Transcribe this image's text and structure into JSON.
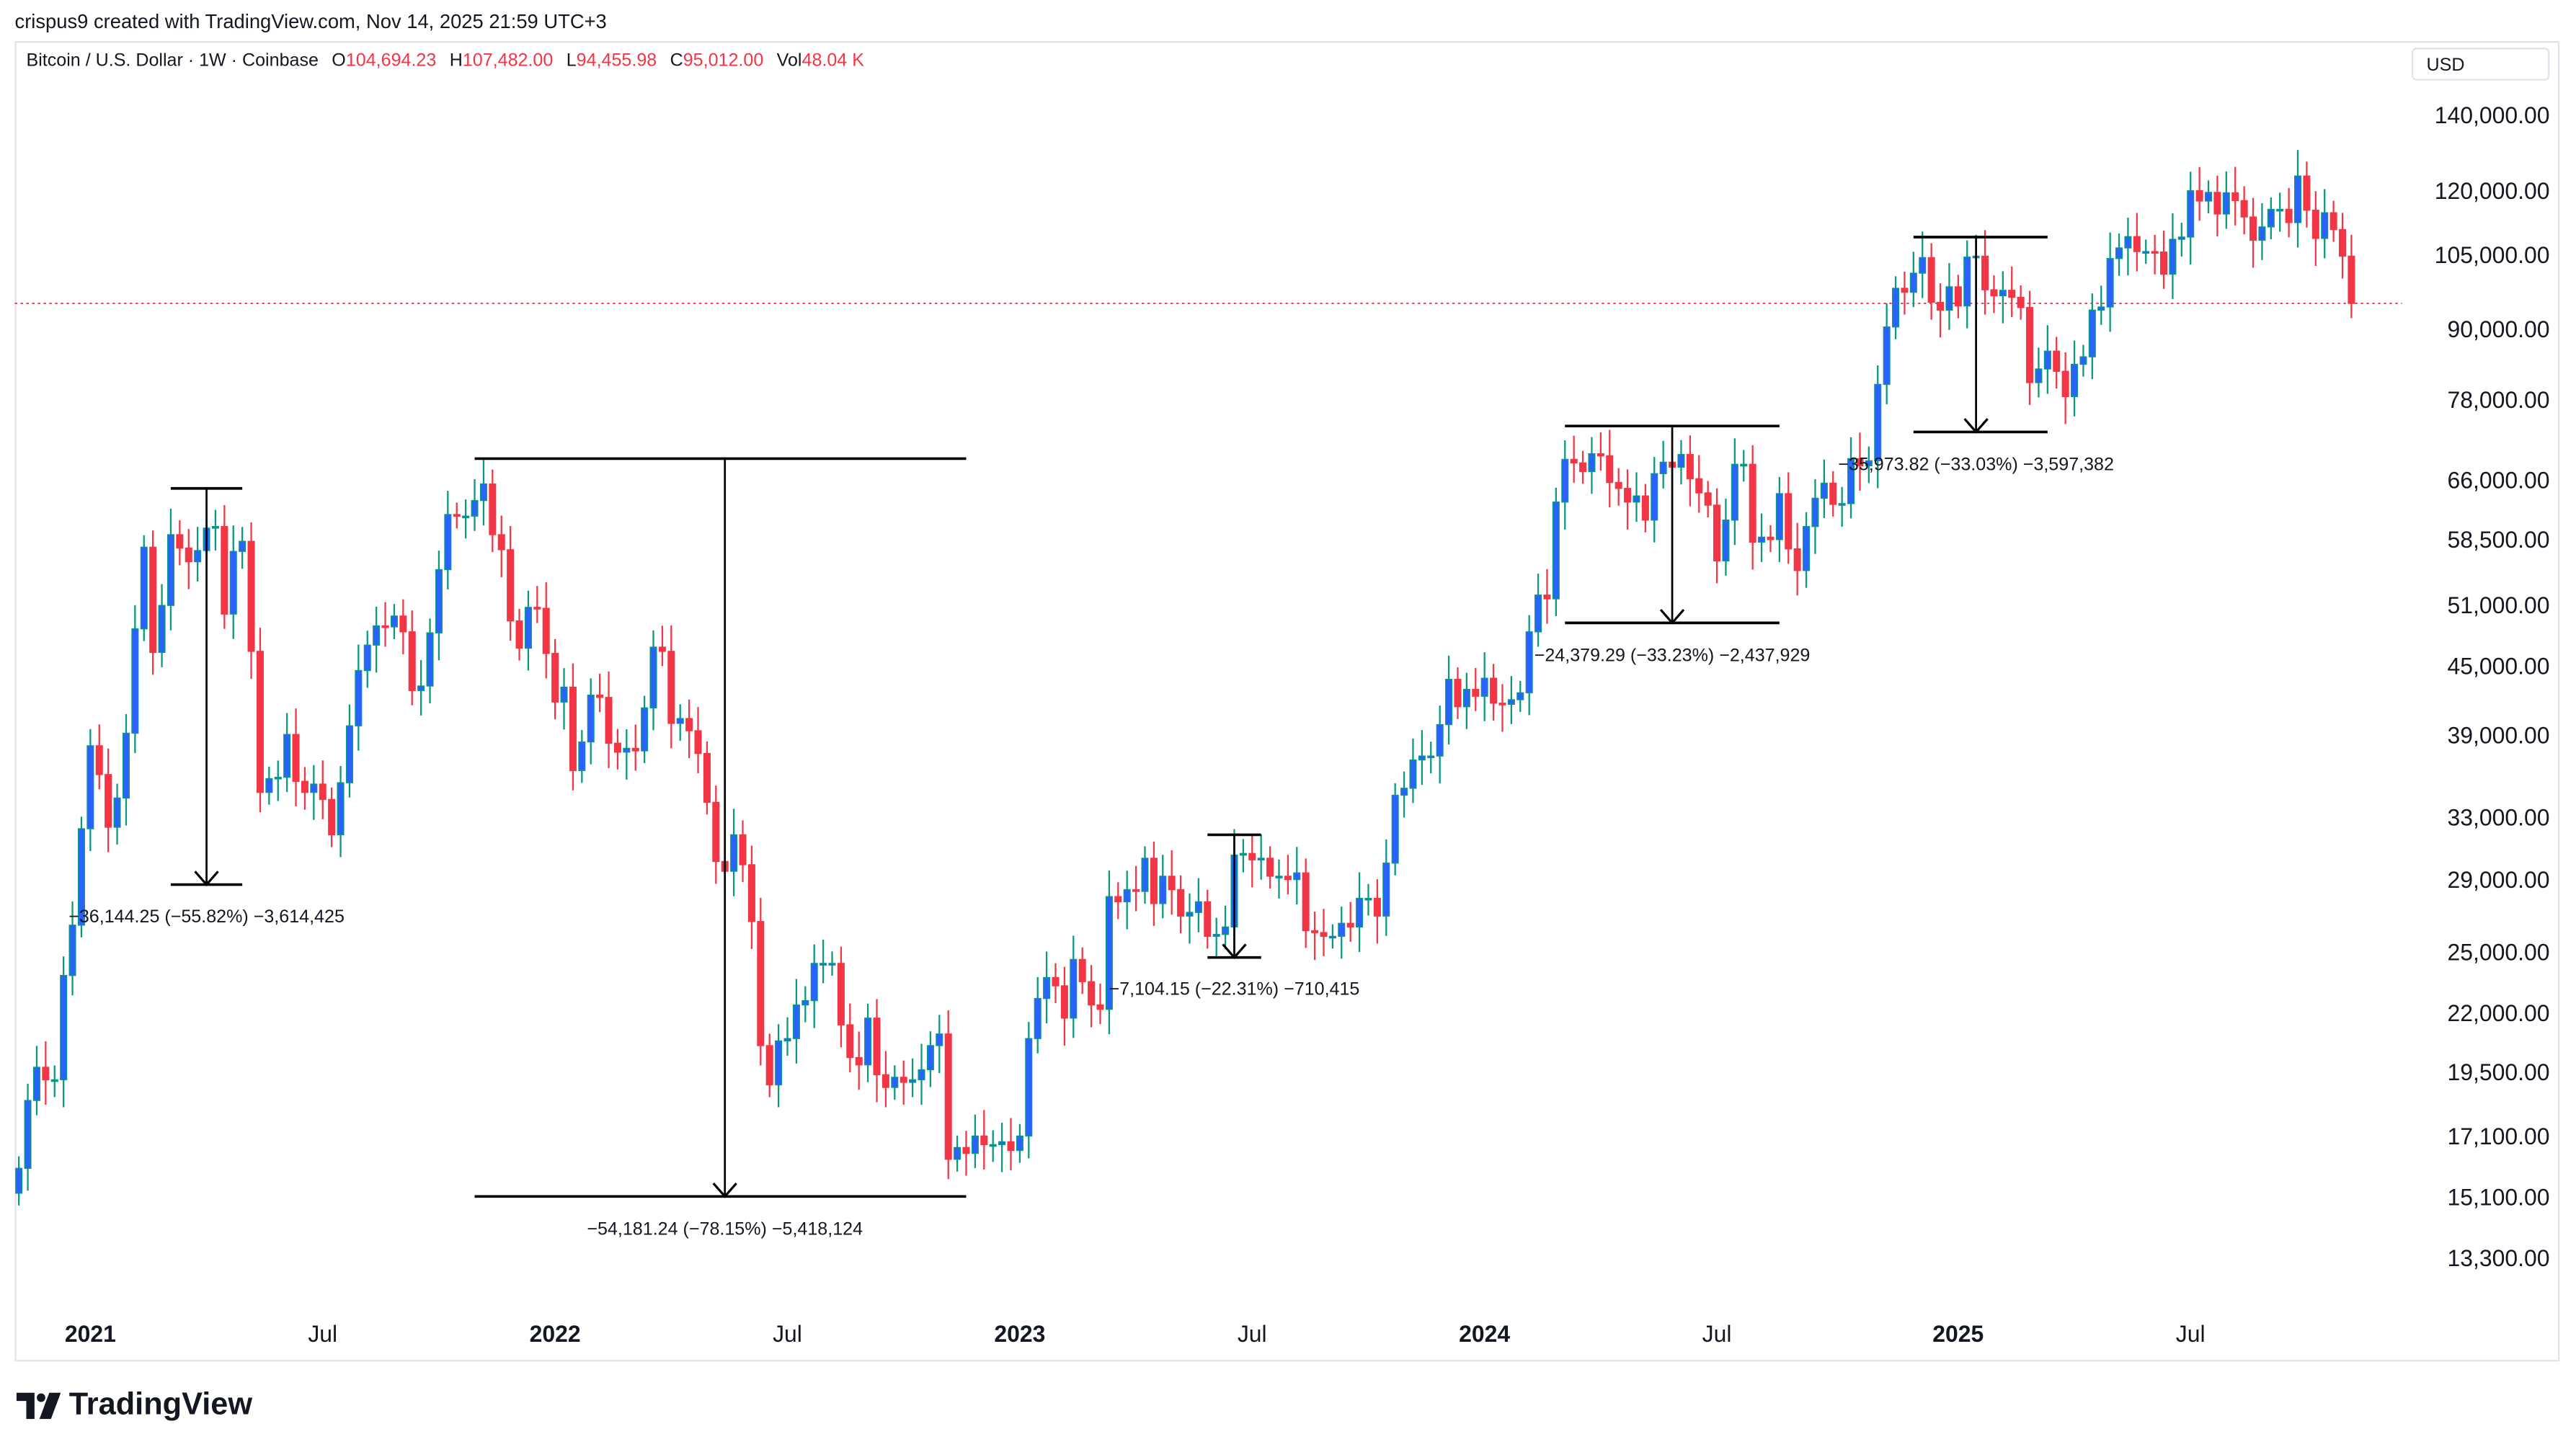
{
  "credit": "crispus9 created with TradingView.com, Nov 14, 2025 21:59 UTC+3",
  "legend": {
    "symbol": "Bitcoin / U.S. Dollar · 1W · Coinbase",
    "o_label": "O",
    "o": "104,694.23",
    "h_label": "H",
    "h": "107,482.00",
    "l_label": "L",
    "l": "94,455.98",
    "c_label": "C",
    "c": "95,012.00",
    "vol_label": "Vol",
    "vol": "48.04 K"
  },
  "currency": "USD",
  "brand": "TradingView",
  "colors": {
    "up_fill": "#2962ff",
    "up_border": "#089981",
    "down": "#f23645",
    "price_line": "#f23645"
  },
  "chart_data": {
    "type": "candlestick",
    "title": "Bitcoin / U.S. Dollar · 1W · Coinbase",
    "first_week": "2020-11-09",
    "unit": "thousand USD",
    "closes": [
      16.0,
      18.4,
      19.7,
      19.2,
      19.2,
      23.8,
      26.4,
      32.2,
      38.2,
      36.0,
      32.3,
      34.3,
      39.2,
      48.6,
      57.5,
      46.3,
      51.0,
      59.0,
      57.4,
      55.8,
      57.1,
      59.8,
      60.0,
      50.1,
      57.0,
      58.2,
      46.4,
      34.7,
      35.7,
      35.8,
      39.1,
      35.5,
      34.7,
      35.3,
      34.2,
      31.8,
      35.4,
      39.8,
      44.6,
      47.0,
      48.9,
      48.8,
      49.9,
      48.3,
      42.8,
      43.2,
      48.2,
      54.9,
      61.5,
      61.3,
      61.3,
      63.3,
      65.5,
      59.0,
      57.2,
      49.4,
      46.7,
      50.8,
      50.7,
      46.2,
      41.8,
      43.1,
      36.3,
      38.5,
      42.4,
      42.2,
      38.4,
      37.7,
      38.0,
      37.8,
      41.3,
      46.8,
      46.4,
      40.0,
      40.4,
      39.4,
      37.6,
      34.0,
      30.1,
      29.5,
      31.8,
      29.9,
      26.6,
      20.6,
      19.0,
      20.8,
      20.9,
      22.4,
      22.6,
      24.4,
      24.4,
      24.4,
      21.5,
      20.1,
      19.8,
      21.8,
      19.4,
      18.9,
      19.3,
      19.1,
      19.2,
      19.6,
      20.6,
      21.1,
      16.3,
      16.7,
      16.5,
      17.1,
      16.8,
      16.8,
      16.9,
      16.6,
      17.1,
      20.9,
      22.7,
      23.7,
      23.3,
      21.8,
      24.6,
      23.5,
      22.4,
      22.2,
      28.0,
      27.7,
      28.4,
      28.3,
      30.3,
      27.6,
      29.2,
      28.4,
      26.9,
      27.1,
      27.7,
      25.8,
      25.9,
      26.3,
      30.5,
      30.6,
      30.2,
      30.3,
      29.2,
      29.2,
      29.0,
      29.4,
      26.1,
      26.0,
      25.8,
      25.8,
      26.5,
      26.3,
      27.9,
      27.9,
      26.9,
      30.0,
      34.5,
      35.0,
      37.1,
      37.4,
      37.4,
      39.9,
      43.8,
      41.4,
      42.9,
      42.3,
      43.9,
      41.7,
      41.6,
      42.0,
      42.6,
      48.3,
      52.1,
      51.7,
      63.1,
      68.9,
      68.4,
      67.2,
      69.7,
      69.4,
      65.7,
      64.9,
      63.1,
      63.9,
      60.8,
      66.9,
      68.5,
      67.8,
      69.6,
      66.2,
      64.3,
      62.7,
      55.9,
      60.8,
      68.2,
      68.2,
      58.1,
      58.7,
      58.4,
      64.2,
      57.3,
      54.8,
      60.0,
      63.6,
      65.6,
      62.8,
      62.9,
      69.0,
      68.0,
      68.7,
      80.4,
      90.5,
      98.0,
      97.2,
      101.1,
      104.4,
      95.2,
      93.7,
      98.3,
      94.5,
      104.5,
      104.7,
      97.7,
      96.5,
      97.6,
      96.2,
      94.2,
      80.7,
      83.0,
      86.1,
      82.6,
      78.4,
      83.8,
      85.1,
      93.7,
      94.3,
      104.2,
      106.5,
      109.0,
      105.7,
      105.7,
      105.6,
      100.9,
      108.4,
      108.9,
      119.8,
      117.3,
      119.4,
      114.2,
      119.3,
      117.4,
      113.5,
      108.2,
      111.2,
      115.3,
      115.3,
      112.2,
      123.5,
      115.1,
      108.6,
      114.5,
      110.6,
      104.7,
      95.0
    ],
    "last_price": 95012,
    "y_scale": "log",
    "ylim": [
      12000,
      150000
    ],
    "y_ticks": [
      "140,000.00",
      "120,000.00",
      "105,000.00",
      "90,000.00",
      "78,000.00",
      "66,000.00",
      "58,500.00",
      "51,000.00",
      "45,000.00",
      "39,000.00",
      "33,000.00",
      "29,000.00",
      "25,000.00",
      "22,000.00",
      "19,500.00",
      "17,100.00",
      "15,100.00",
      "13,300.00"
    ],
    "x_ticks": [
      {
        "label": "2021",
        "date": "2021-01-04",
        "year": true
      },
      {
        "label": "Jul",
        "date": "2021-07-05",
        "year": false
      },
      {
        "label": "2022",
        "date": "2022-01-03",
        "year": true
      },
      {
        "label": "Jul",
        "date": "2022-07-04",
        "year": false
      },
      {
        "label": "2023",
        "date": "2023-01-02",
        "year": true
      },
      {
        "label": "Jul",
        "date": "2023-07-03",
        "year": false
      },
      {
        "label": "2024",
        "date": "2024-01-01",
        "year": true
      },
      {
        "label": "Jul",
        "date": "2024-07-01",
        "year": false
      },
      {
        "label": "2025",
        "date": "2025-01-06",
        "year": true
      },
      {
        "label": "Jul",
        "date": "2025-07-07",
        "year": false
      }
    ],
    "measurements": [
      {
        "label": "−36,144.25 (−55.82%) −3,614,425",
        "from_price": 64900,
        "to_price": 28700,
        "start": "2021-03-08",
        "end": "2021-05-03",
        "at": "2021-04-05"
      },
      {
        "label": "−54,181.24 (−78.15%) −5,418,124",
        "from_price": 69000,
        "to_price": 15100,
        "start": "2021-11-01",
        "end": "2022-11-21",
        "at": "2022-05-16"
      },
      {
        "label": "−7,104.15 (−22.31%) −710,415",
        "from_price": 31800,
        "to_price": 24700,
        "start": "2023-05-29",
        "end": "2023-07-10",
        "at": "2023-06-19"
      },
      {
        "label": "−24,379.29 (−33.23%) −2,437,929",
        "from_price": 73800,
        "to_price": 49200,
        "start": "2024-03-04",
        "end": "2024-08-19",
        "at": "2024-05-27"
      },
      {
        "label": "−35,973.82 (−33.03%) −3,597,382",
        "from_price": 108900,
        "to_price": 72900,
        "start": "2024-12-02",
        "end": "2025-03-17",
        "at": "2025-01-20"
      }
    ]
  }
}
